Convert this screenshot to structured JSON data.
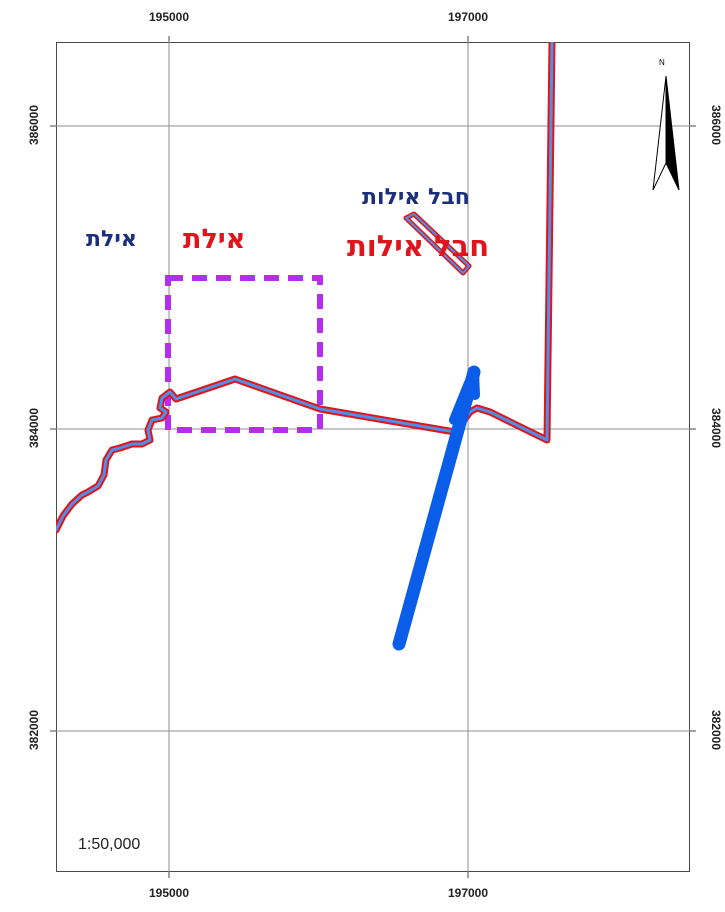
{
  "map": {
    "scale": "1:50,000",
    "north_label": "N",
    "grid": {
      "x_labels": [
        "195000",
        "197000"
      ],
      "y_labels": [
        "386000",
        "384000",
        "382000"
      ]
    },
    "places": {
      "eilat_blue": "אילת",
      "eilat_red": "אילת",
      "hevel_eilot_blue": "חבל אילות",
      "hevel_eilot_red": "חבל אילות"
    },
    "colors": {
      "boundary_outline": "#e0141c",
      "boundary_fill": "#4f8fe6",
      "route": "#0a5de8",
      "dashed_box": "#b52ef0",
      "grid": "#8f8f8f",
      "label_blue": "#1b2f7a",
      "label_red": "#e0141c"
    }
  }
}
